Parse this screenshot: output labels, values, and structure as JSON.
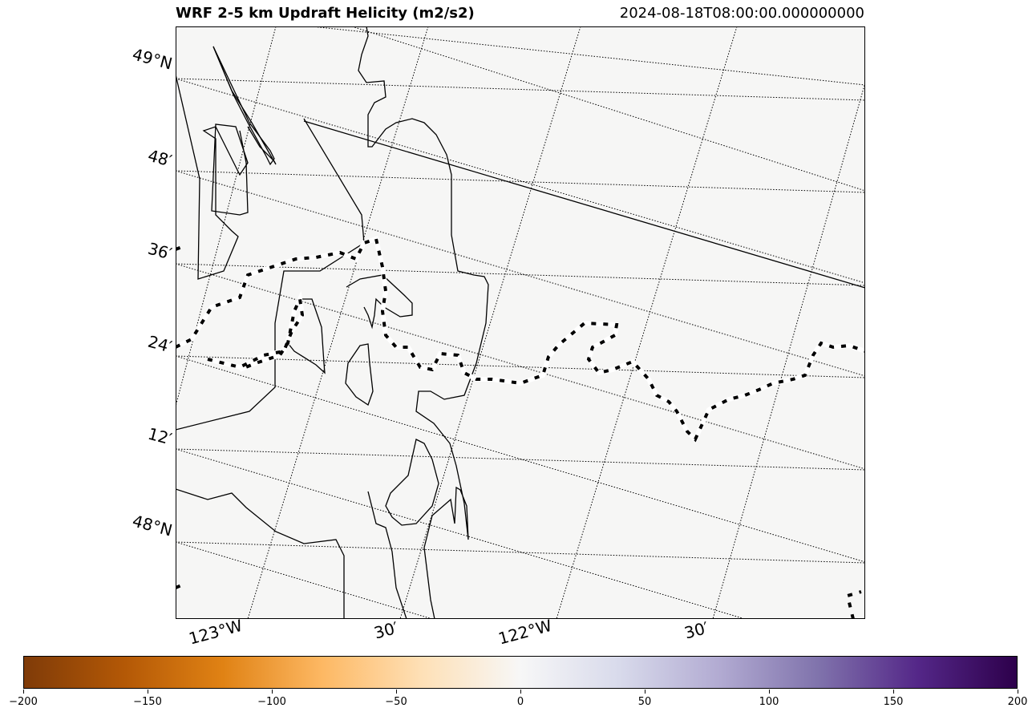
{
  "header": {
    "title": "WRF 2-5 km Updraft Helicity (m2/s2)",
    "timestamp": "2024-08-18T08:00:00.000000000"
  },
  "map": {
    "background_color": "#f6f6f5",
    "lat_labels": [
      "49°N",
      "48′",
      "36′",
      "24′",
      "12′",
      "48°N"
    ],
    "lon_labels": [
      "123°W",
      "30′",
      "122°W",
      "30′"
    ]
  },
  "colorbar": {
    "colormap": "PuOr",
    "min": -200,
    "max": 200,
    "ticks": [
      "−200",
      "−150",
      "−100",
      "−50",
      "0",
      "50",
      "100",
      "150",
      "200"
    ],
    "colors": [
      "#7f3b08",
      "#b35806",
      "#e08214",
      "#fdb863",
      "#fee0b6",
      "#f7f7f7",
      "#d8daeb",
      "#b2abd2",
      "#8073ac",
      "#542788",
      "#2d004b"
    ]
  }
}
